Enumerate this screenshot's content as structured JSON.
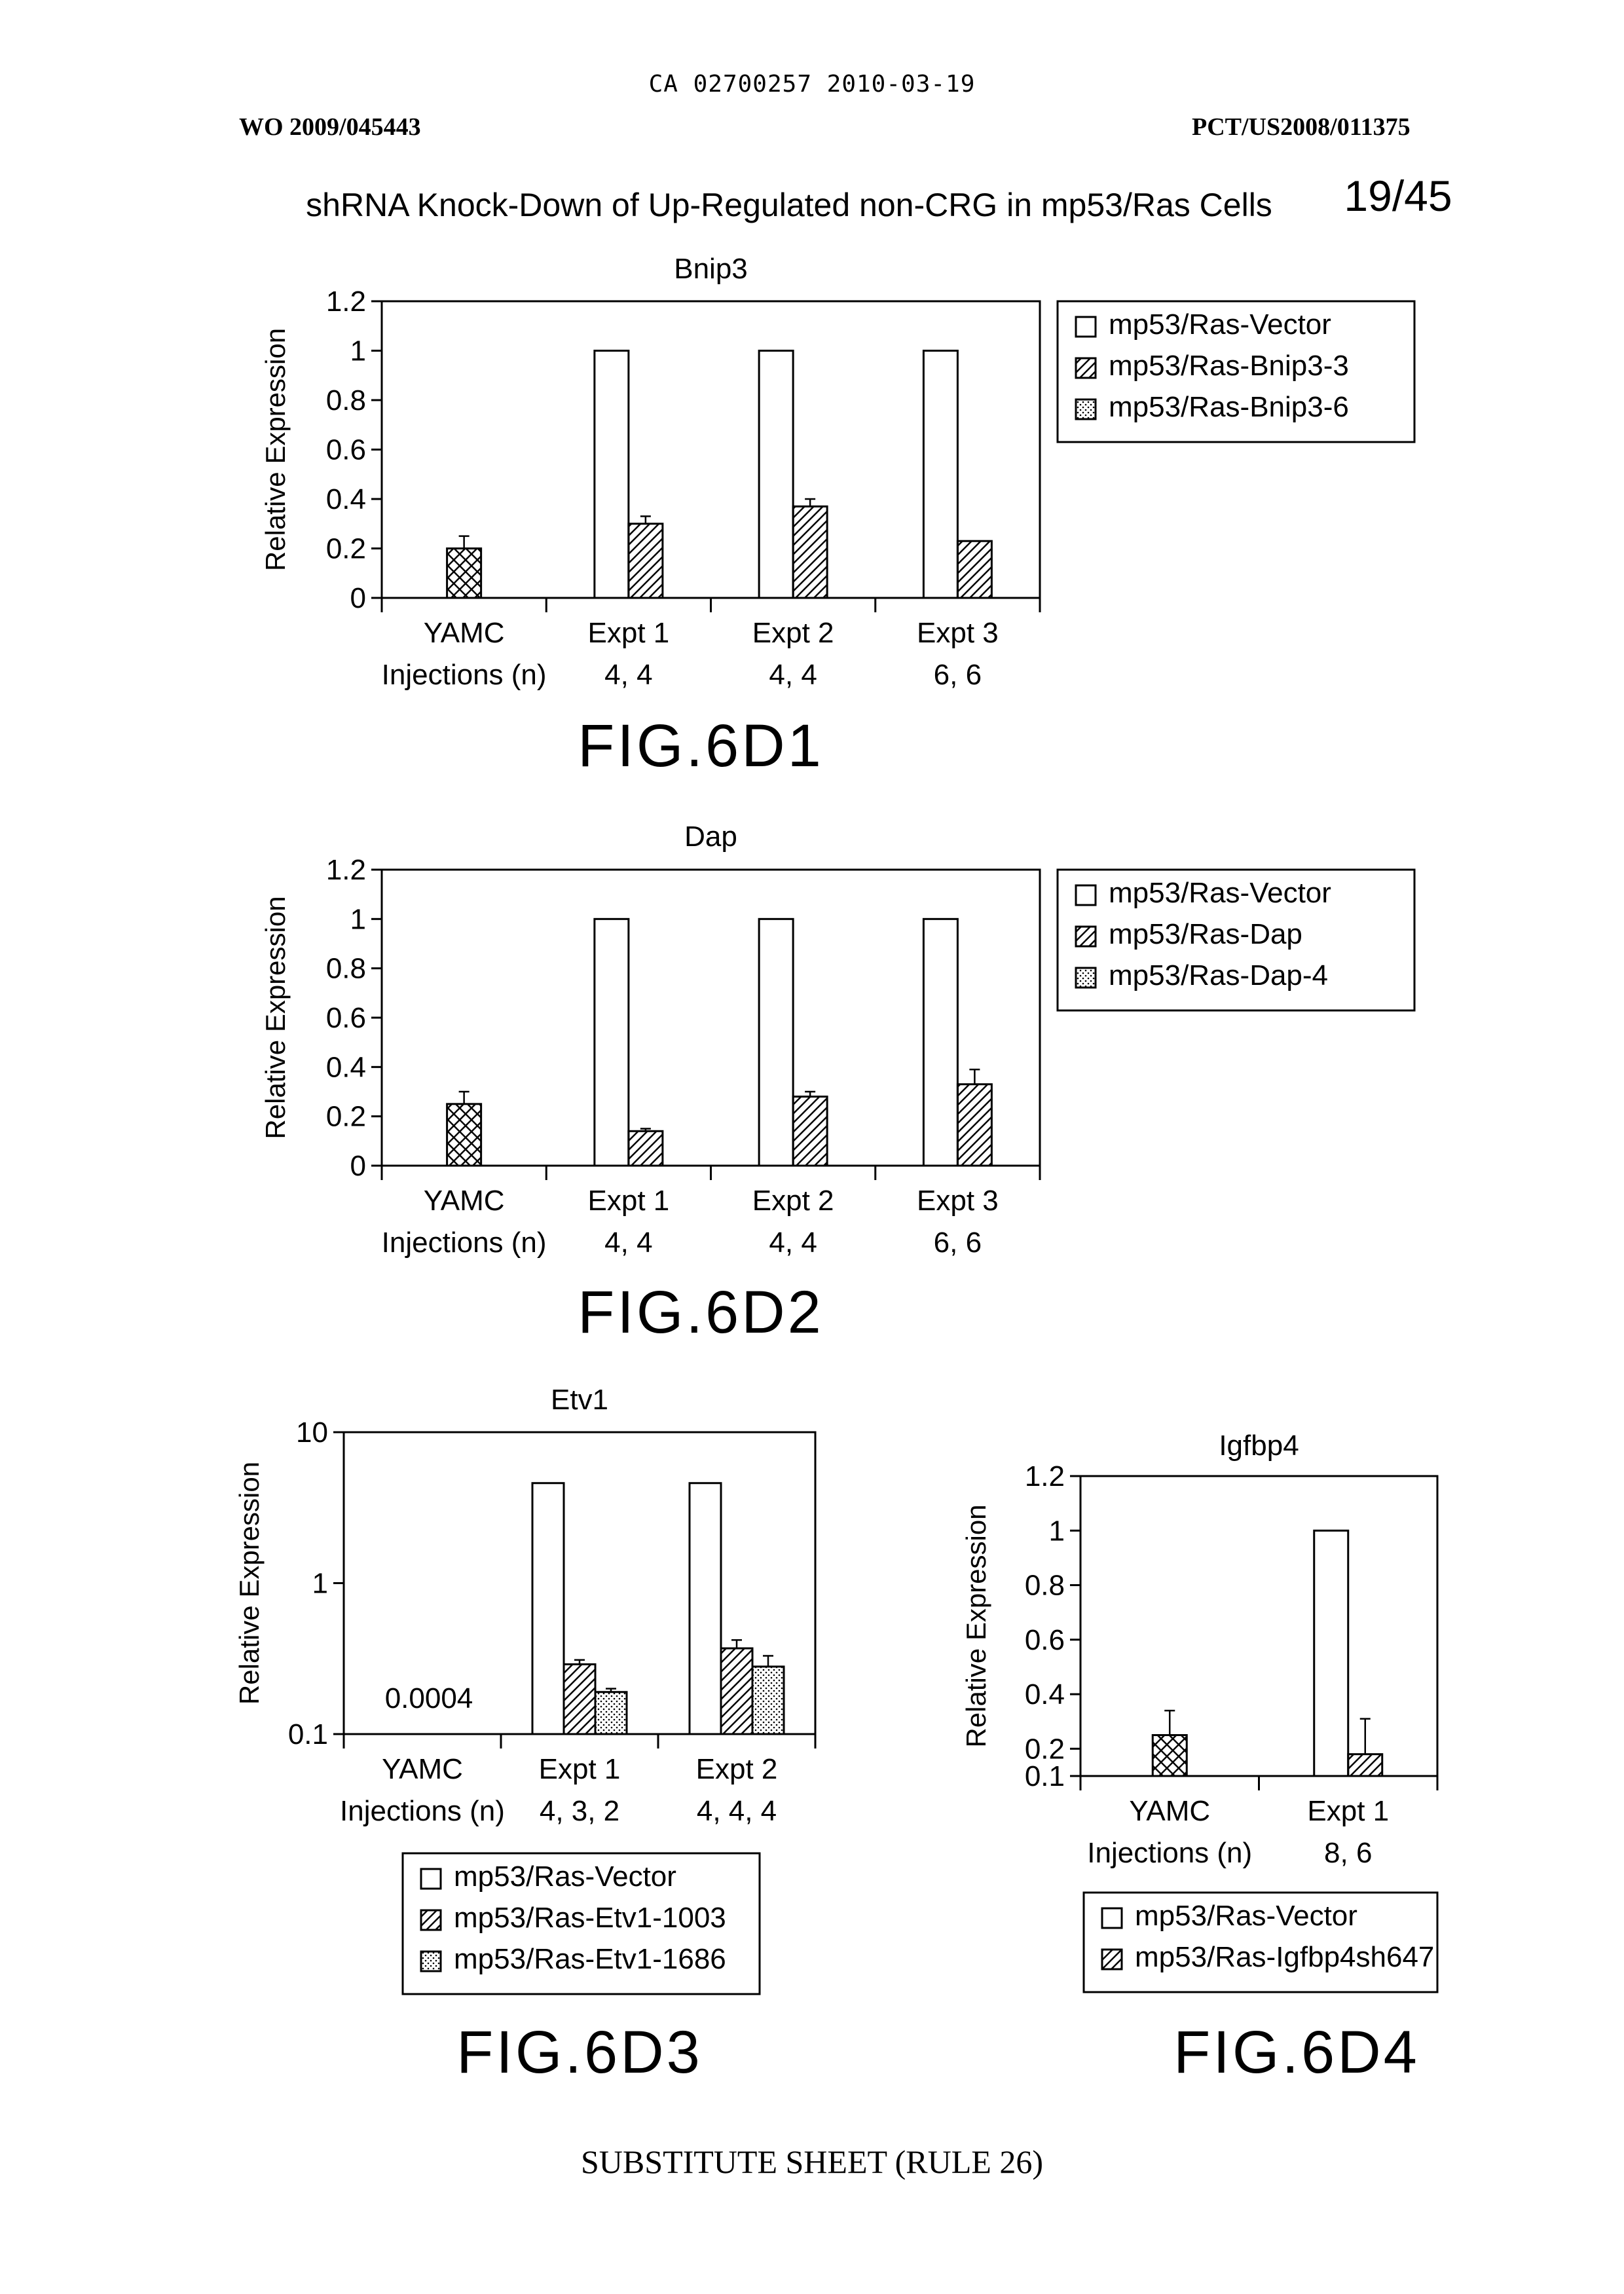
{
  "header": {
    "ca_line": "CA 02700257 2010-03-19",
    "wo_number": "WO 2009/045443",
    "pct_number": "PCT/US2008/011375",
    "sheet_title": "shRNA Knock-Down of Up-Regulated non-CRG in mp53/Ras Cells",
    "sheet_number": "19/45"
  },
  "footer": {
    "text": "SUBSTITUTE SHEET (RULE 26)"
  },
  "colors": {
    "ink": "#000000",
    "paper": "#ffffff"
  },
  "chart_data": [
    {
      "id": "6D1",
      "type": "bar",
      "title": "Bnip3",
      "fig_label": "FIG.6D1",
      "ylabel": "Relative Expression",
      "yscale": "linear",
      "ylim": [
        0,
        1.2
      ],
      "yticks": [
        "0",
        "0.2",
        "0.4",
        "0.6",
        "0.8",
        "1",
        "1.2"
      ],
      "grid": false,
      "legend_position": "right",
      "n_label": "Injections (n)",
      "categories": [
        "YAMC",
        "Expt 1",
        "Expt 2",
        "Expt 3"
      ],
      "n_values": [
        "",
        "4, 4",
        "4, 4",
        "6, 6"
      ],
      "yamc": {
        "pattern": "crosshatch",
        "value": 0.2,
        "error": 0.05
      },
      "series": [
        {
          "name": "mp53/Ras-Vector",
          "pattern": "open",
          "values": [
            null,
            1.0,
            1.0,
            1.0
          ],
          "errors": [
            null,
            0,
            0,
            0
          ]
        },
        {
          "name": "mp53/Ras-Bnip3-3",
          "pattern": "hatch",
          "values": [
            null,
            0.3,
            0.37,
            0.23
          ],
          "errors": [
            null,
            0.03,
            0.03,
            0.0
          ]
        },
        {
          "name": "mp53/Ras-Bnip3-6",
          "pattern": "dots",
          "values": [
            null,
            null,
            null,
            null
          ],
          "errors": [
            null,
            null,
            null,
            null
          ]
        }
      ]
    },
    {
      "id": "6D2",
      "type": "bar",
      "title": "Dap",
      "fig_label": "FIG.6D2",
      "ylabel": "Relative Expression",
      "yscale": "linear",
      "ylim": [
        0,
        1.2
      ],
      "yticks": [
        "0",
        "0.2",
        "0.4",
        "0.6",
        "0.8",
        "1",
        "1.2"
      ],
      "grid": false,
      "legend_position": "right",
      "n_label": "Injections (n)",
      "categories": [
        "YAMC",
        "Expt 1",
        "Expt 2",
        "Expt 3"
      ],
      "n_values": [
        "",
        "4, 4",
        "4, 4",
        "6, 6"
      ],
      "yamc": {
        "pattern": "crosshatch",
        "value": 0.25,
        "error": 0.05
      },
      "series": [
        {
          "name": "mp53/Ras-Vector",
          "pattern": "open",
          "values": [
            null,
            1.0,
            1.0,
            1.0
          ],
          "errors": [
            null,
            0,
            0,
            0
          ]
        },
        {
          "name": "mp53/Ras-Dap",
          "pattern": "hatch",
          "values": [
            null,
            0.14,
            0.28,
            0.33
          ],
          "errors": [
            null,
            0.01,
            0.02,
            0.06
          ]
        },
        {
          "name": "mp53/Ras-Dap-4",
          "pattern": "dots",
          "values": [
            null,
            null,
            null,
            null
          ],
          "errors": [
            null,
            null,
            null,
            null
          ]
        }
      ]
    },
    {
      "id": "6D3",
      "type": "bar",
      "title": "Etv1",
      "fig_label": "FIG.6D3",
      "ylabel": "Relative Expression",
      "yscale": "log",
      "ylim": [
        0.1,
        10
      ],
      "yticks": [
        "0.1",
        "1",
        "10"
      ],
      "grid": false,
      "legend_position": "bottom",
      "n_label": "Injections (n)",
      "categories": [
        "YAMC",
        "Expt 1",
        "Expt 2"
      ],
      "n_values": [
        "",
        "4, 3, 2",
        "4, 4, 4"
      ],
      "yamc_annotation": "0.0004",
      "series": [
        {
          "name": "mp53/Ras-Vector",
          "pattern": "open",
          "values": [
            null,
            4.6,
            4.6
          ],
          "errors": [
            null,
            0,
            0
          ]
        },
        {
          "name": "mp53/Ras-Etv1-1003",
          "pattern": "hatch",
          "values": [
            null,
            0.29,
            0.37
          ],
          "errors": [
            null,
            0.02,
            0.05
          ]
        },
        {
          "name": "mp53/Ras-Etv1-1686",
          "pattern": "dots",
          "values": [
            null,
            0.19,
            0.28
          ],
          "errors": [
            null,
            0.01,
            0.05
          ]
        }
      ]
    },
    {
      "id": "6D4",
      "type": "bar",
      "title": "Igfbp4",
      "fig_label": "FIG.6D4",
      "ylabel": "Relative Expression",
      "yscale": "linear",
      "ylim": [
        0.1,
        1.2
      ],
      "yticks": [
        "0.1",
        "0.2",
        "0.4",
        "0.6",
        "0.8",
        "1",
        "1.2"
      ],
      "grid": false,
      "legend_position": "bottom",
      "n_label": "Injections (n)",
      "categories": [
        "YAMC",
        "Expt 1"
      ],
      "n_values": [
        "",
        "8, 6"
      ],
      "yamc": {
        "pattern": "crosshatch",
        "value": 0.25,
        "error": 0.09
      },
      "series": [
        {
          "name": "mp53/Ras-Vector",
          "pattern": "open",
          "values": [
            null,
            1.0
          ],
          "errors": [
            null,
            0
          ]
        },
        {
          "name": "mp53/Ras-Igfbp4sh647",
          "pattern": "hatch",
          "values": [
            null,
            0.18
          ],
          "errors": [
            null,
            0.13
          ]
        }
      ]
    }
  ]
}
